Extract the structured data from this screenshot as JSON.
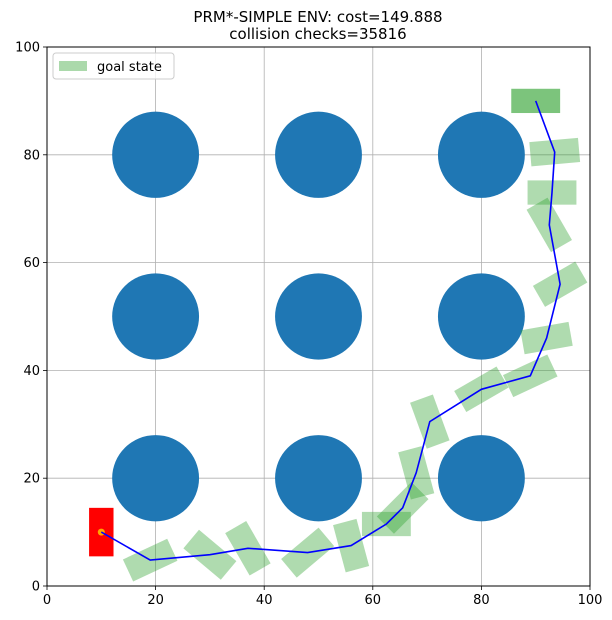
{
  "chart_data": {
    "type": "scatter",
    "title_line1": "PRM*-SIMPLE ENV: cost=149.888",
    "title_line2": "collision checks=35816",
    "xlabel": "",
    "ylabel": "",
    "xlim": [
      0,
      100
    ],
    "ylim": [
      0,
      100
    ],
    "xticks": [
      0,
      20,
      40,
      60,
      80,
      100
    ],
    "yticks": [
      0,
      20,
      40,
      60,
      80,
      100
    ],
    "grid": true,
    "legend": {
      "position": "top-left",
      "entries": [
        "goal state"
      ]
    },
    "colors": {
      "obstacle": "#1f77b4",
      "path": "#0000ff",
      "state": "#2ca02c",
      "start_box": "#ff0000",
      "start_marker": "#ffa500"
    },
    "obstacles": [
      {
        "x": 20,
        "y": 80,
        "r": 8
      },
      {
        "x": 50,
        "y": 80,
        "r": 8
      },
      {
        "x": 80,
        "y": 80,
        "r": 8
      },
      {
        "x": 20,
        "y": 50,
        "r": 8
      },
      {
        "x": 50,
        "y": 50,
        "r": 8
      },
      {
        "x": 80,
        "y": 50,
        "r": 8
      },
      {
        "x": 20,
        "y": 20,
        "r": 8
      },
      {
        "x": 50,
        "y": 20,
        "r": 8
      },
      {
        "x": 80,
        "y": 20,
        "r": 8
      }
    ],
    "start_state": {
      "x": 10,
      "y": 10,
      "w": 4.5,
      "h": 9,
      "angle": 0
    },
    "goal_state": {
      "x": 90,
      "y": 90,
      "w": 9,
      "h": 4.5,
      "angle": 0
    },
    "path": [
      [
        10,
        10
      ],
      [
        19,
        4.8
      ],
      [
        30,
        5.8
      ],
      [
        37,
        7
      ],
      [
        48,
        6.2
      ],
      [
        56,
        7.5
      ],
      [
        62.5,
        11.5
      ],
      [
        65.5,
        14.5
      ],
      [
        68,
        21
      ],
      [
        70.5,
        30.5
      ],
      [
        80,
        36.5
      ],
      [
        89,
        39
      ],
      [
        92,
        46
      ],
      [
        94.5,
        56
      ],
      [
        92.5,
        67
      ],
      [
        93,
        73
      ],
      [
        93.5,
        80.5
      ],
      [
        90,
        90
      ]
    ],
    "intermediate_states": [
      {
        "x": 19,
        "y": 4.8,
        "angle": 25
      },
      {
        "x": 30,
        "y": 5.8,
        "angle": -40
      },
      {
        "x": 37,
        "y": 7,
        "angle": -60
      },
      {
        "x": 48,
        "y": 6.2,
        "angle": 40
      },
      {
        "x": 56,
        "y": 7.5,
        "angle": -75
      },
      {
        "x": 62.5,
        "y": 11.5,
        "angle": 0
      },
      {
        "x": 65.5,
        "y": 14.5,
        "angle": 45
      },
      {
        "x": 68,
        "y": 21,
        "angle": -75
      },
      {
        "x": 70.5,
        "y": 30.5,
        "angle": -70
      },
      {
        "x": 80,
        "y": 36.5,
        "angle": 30
      },
      {
        "x": 89,
        "y": 39,
        "angle": 25
      },
      {
        "x": 92,
        "y": 46,
        "angle": 10
      },
      {
        "x": 94.5,
        "y": 56,
        "angle": 30
      },
      {
        "x": 92.5,
        "y": 67,
        "angle": -60
      },
      {
        "x": 93,
        "y": 73,
        "angle": 0
      },
      {
        "x": 93.5,
        "y": 80.5,
        "angle": 5
      }
    ]
  }
}
